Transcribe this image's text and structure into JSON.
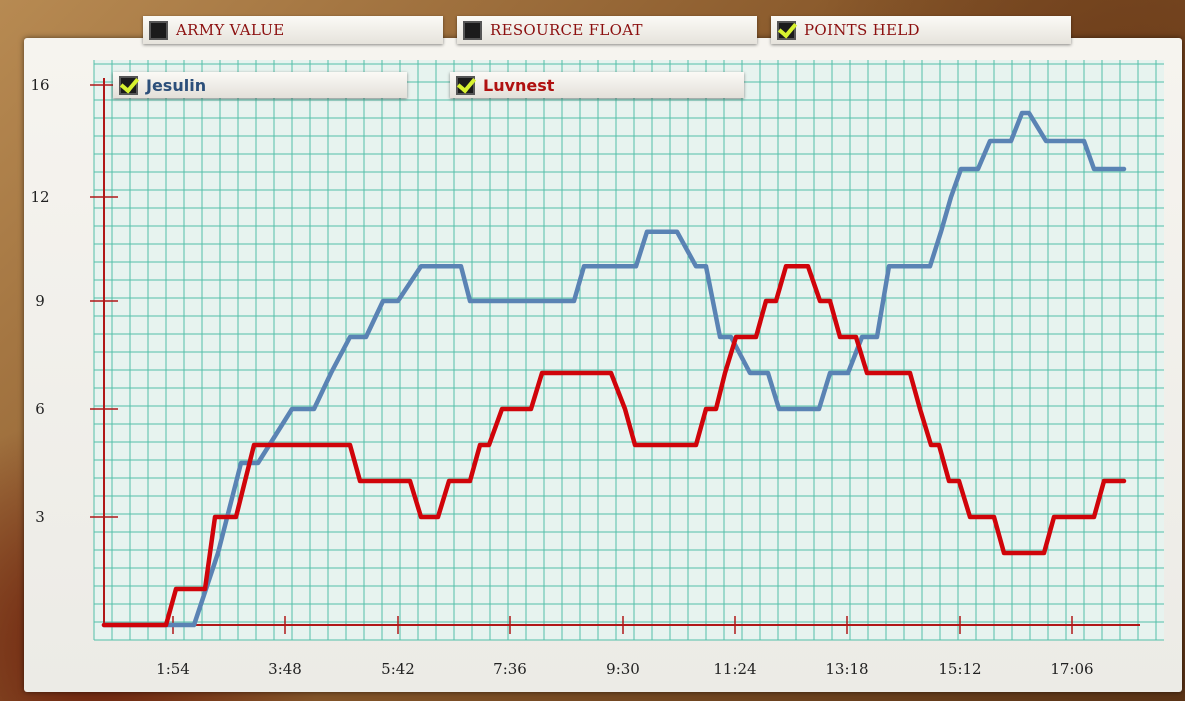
{
  "toggles": [
    {
      "label": "ARMY VALUE",
      "checked": false
    },
    {
      "label": "RESOURCE FLOAT",
      "checked": false
    },
    {
      "label": "POINTS HELD",
      "checked": true
    }
  ],
  "legend": [
    {
      "label": "Jesulin",
      "checked": true,
      "color": "#5a83b4"
    },
    {
      "label": "Luvnest",
      "checked": true,
      "color": "#d0040a"
    }
  ],
  "colors": {
    "grid": "#53bfa8",
    "axis": "#b01818",
    "chart_bg": "#e7f3ef"
  },
  "chart_data": {
    "type": "line",
    "title": "",
    "xlabel": "",
    "ylabel": "",
    "x_tick_labels": [
      "1:54",
      "3:48",
      "5:42",
      "7:36",
      "9:30",
      "11:24",
      "13:18",
      "15:12",
      "17:06"
    ],
    "y_tick_labels": [
      "3",
      "6",
      "9",
      "12",
      "16"
    ],
    "xlim": [
      0,
      1080
    ],
    "ylim": [
      0,
      16
    ],
    "grid": true,
    "series": [
      {
        "name": "Jesulin",
        "color": "#5a83b4",
        "points": [
          [
            0,
            0
          ],
          [
            90,
            0
          ],
          [
            114,
            2
          ],
          [
            137,
            4.5
          ],
          [
            154,
            4.5
          ],
          [
            188,
            6
          ],
          [
            210,
            6
          ],
          [
            227,
            7
          ],
          [
            246,
            8
          ],
          [
            262,
            8
          ],
          [
            279,
            9
          ],
          [
            294,
            9
          ],
          [
            317,
            10
          ],
          [
            357,
            10
          ],
          [
            366,
            9
          ],
          [
            470,
            9
          ],
          [
            480,
            10
          ],
          [
            532,
            10
          ],
          [
            543,
            11
          ],
          [
            573,
            11
          ],
          [
            592,
            10
          ],
          [
            602,
            10
          ],
          [
            616,
            8
          ],
          [
            627,
            8
          ],
          [
            646,
            7
          ],
          [
            664,
            7
          ],
          [
            675,
            6
          ],
          [
            715,
            6
          ],
          [
            726,
            7
          ],
          [
            744,
            7
          ],
          [
            758,
            8
          ],
          [
            773,
            8
          ],
          [
            785,
            10
          ],
          [
            826,
            10
          ],
          [
            837,
            11
          ],
          [
            847,
            12
          ],
          [
            857,
            13
          ],
          [
            874,
            13
          ],
          [
            886,
            14
          ],
          [
            907,
            14
          ],
          [
            918,
            15
          ],
          [
            925,
            15
          ],
          [
            942,
            14
          ],
          [
            980,
            14
          ],
          [
            990,
            13
          ],
          [
            1020,
            13
          ]
        ]
      },
      {
        "name": "Luvnest",
        "color": "#d0040a",
        "points": [
          [
            0,
            0
          ],
          [
            62,
            0
          ],
          [
            72,
            1
          ],
          [
            101,
            1
          ],
          [
            111,
            3
          ],
          [
            132,
            3
          ],
          [
            150,
            5
          ],
          [
            246,
            5
          ],
          [
            256,
            4
          ],
          [
            306,
            4
          ],
          [
            317,
            3
          ],
          [
            334,
            3
          ],
          [
            345,
            4
          ],
          [
            366,
            4
          ],
          [
            376,
            5
          ],
          [
            385,
            5
          ],
          [
            398,
            6
          ],
          [
            427,
            6
          ],
          [
            438,
            7
          ],
          [
            507,
            7
          ],
          [
            521,
            6
          ],
          [
            531,
            5
          ],
          [
            592,
            5
          ],
          [
            602,
            6
          ],
          [
            612,
            6
          ],
          [
            621,
            7
          ],
          [
            632,
            8
          ],
          [
            652,
            8
          ],
          [
            662,
            9
          ],
          [
            672,
            9
          ],
          [
            682,
            10
          ],
          [
            704,
            10
          ],
          [
            716,
            9
          ],
          [
            726,
            9
          ],
          [
            736,
            8
          ],
          [
            752,
            8
          ],
          [
            763,
            7
          ],
          [
            806,
            7
          ],
          [
            816,
            6
          ],
          [
            827,
            5
          ],
          [
            835,
            5
          ],
          [
            845,
            4
          ],
          [
            855,
            4
          ],
          [
            866,
            3
          ],
          [
            890,
            3
          ],
          [
            900,
            2
          ],
          [
            940,
            2
          ],
          [
            950,
            3
          ],
          [
            990,
            3
          ],
          [
            1000,
            4
          ],
          [
            1020,
            4
          ]
        ]
      }
    ]
  }
}
